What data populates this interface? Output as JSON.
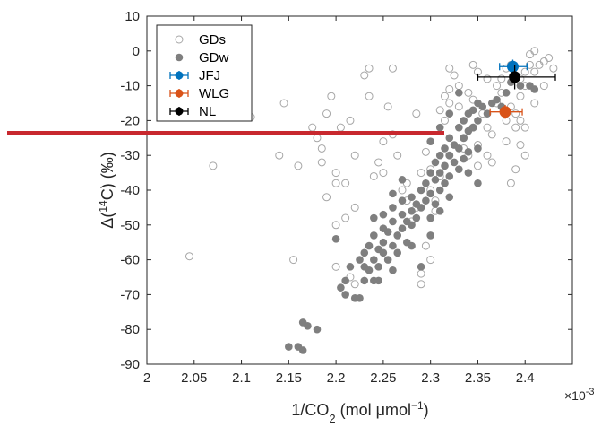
{
  "chart_data": {
    "type": "scatter",
    "title": "",
    "xlabel": "1/CO",
    "xlabel_sub": "2",
    "xlabel_units_prefix": " (mol μmol",
    "xlabel_units_sup": "−1",
    "xlabel_units_suffix": ")",
    "ylabel_prefix": "Δ(",
    "ylabel_sup": "14",
    "ylabel_suffix": "C) (‰)",
    "x_exponent_base": "×10",
    "x_exponent": "-3",
    "xlim": [
      2.0,
      2.45
    ],
    "ylim": [
      -90,
      10
    ],
    "xticks": [
      2,
      2.05,
      2.1,
      2.15,
      2.2,
      2.25,
      2.3,
      2.35,
      2.4
    ],
    "xtick_labels": [
      "2",
      "2.05",
      "2.1",
      "2.15",
      "2.2",
      "2.25",
      "2.3",
      "2.35",
      "2.4"
    ],
    "yticks": [
      10,
      0,
      -10,
      -20,
      -30,
      -40,
      -50,
      -60,
      -70,
      -80,
      -90
    ],
    "ytick_labels": [
      "10",
      "0",
      "-10",
      "-20",
      "-30",
      "-40",
      "-50",
      "-60",
      "-70",
      "-80",
      "-90"
    ],
    "grid": false,
    "legend_position": "top-left",
    "series": [
      {
        "name": "GDs",
        "marker": "open-circle",
        "color": "#a6a6a6",
        "points": [
          [
            2.045,
            -59
          ],
          [
            2.07,
            -33
          ],
          [
            2.1,
            -17
          ],
          [
            2.11,
            -19
          ],
          [
            2.14,
            -30
          ],
          [
            2.145,
            -15
          ],
          [
            2.155,
            -60
          ],
          [
            2.16,
            -33
          ],
          [
            2.175,
            -22
          ],
          [
            2.18,
            -25
          ],
          [
            2.185,
            -28
          ],
          [
            2.185,
            -32
          ],
          [
            2.19,
            -42
          ],
          [
            2.19,
            -18
          ],
          [
            2.195,
            -13
          ],
          [
            2.2,
            -35
          ],
          [
            2.2,
            -38
          ],
          [
            2.205,
            -22
          ],
          [
            2.21,
            -38
          ],
          [
            2.215,
            -20
          ],
          [
            2.23,
            -7
          ],
          [
            2.235,
            -5
          ],
          [
            2.235,
            -13
          ],
          [
            2.24,
            -36
          ],
          [
            2.245,
            -32
          ],
          [
            2.25,
            -26
          ],
          [
            2.25,
            -35
          ],
          [
            2.255,
            -16
          ],
          [
            2.26,
            -5
          ],
          [
            2.265,
            -30
          ],
          [
            2.27,
            -40
          ],
          [
            2.275,
            -43
          ],
          [
            2.28,
            -49
          ],
          [
            2.285,
            -45
          ],
          [
            2.285,
            -18
          ],
          [
            2.29,
            -64
          ],
          [
            2.29,
            -67
          ],
          [
            2.295,
            -29
          ],
          [
            2.3,
            -34
          ],
          [
            2.3,
            -40
          ],
          [
            2.305,
            -46
          ],
          [
            2.31,
            -36
          ],
          [
            2.31,
            -17
          ],
          [
            2.315,
            -13
          ],
          [
            2.315,
            -20
          ],
          [
            2.32,
            -5
          ],
          [
            2.32,
            -11
          ],
          [
            2.325,
            -7
          ],
          [
            2.33,
            -10
          ],
          [
            2.335,
            -25
          ],
          [
            2.335,
            -28
          ],
          [
            2.34,
            -30
          ],
          [
            2.345,
            -22
          ],
          [
            2.35,
            -27
          ],
          [
            2.355,
            -18
          ],
          [
            2.36,
            -22
          ],
          [
            2.36,
            -30
          ],
          [
            2.365,
            -32
          ],
          [
            2.365,
            -24
          ],
          [
            2.37,
            -15
          ],
          [
            2.375,
            -8
          ],
          [
            2.375,
            -12
          ],
          [
            2.38,
            -20
          ],
          [
            2.38,
            -26
          ],
          [
            2.385,
            -16
          ],
          [
            2.39,
            -18
          ],
          [
            2.39,
            -22
          ],
          [
            2.395,
            -20
          ],
          [
            2.395,
            -8
          ],
          [
            2.4,
            -6
          ],
          [
            2.4,
            -10
          ],
          [
            2.405,
            -4
          ],
          [
            2.405,
            -1
          ],
          [
            2.41,
            0
          ],
          [
            2.41,
            -6
          ],
          [
            2.415,
            -4
          ],
          [
            2.42,
            -10
          ],
          [
            2.385,
            -38
          ],
          [
            2.39,
            -34
          ],
          [
            2.395,
            -27
          ],
          [
            2.4,
            -30
          ],
          [
            2.38,
            -5
          ],
          [
            2.385,
            -4
          ],
          [
            2.37,
            -10
          ],
          [
            2.36,
            -8
          ],
          [
            2.35,
            -6
          ],
          [
            2.345,
            -14
          ],
          [
            2.32,
            -15
          ],
          [
            2.29,
            -35
          ],
          [
            2.275,
            -38
          ],
          [
            2.26,
            -24
          ],
          [
            2.22,
            -45
          ],
          [
            2.215,
            -65
          ],
          [
            2.21,
            -48
          ],
          [
            2.2,
            -50
          ],
          [
            2.2,
            -62
          ],
          [
            2.22,
            -67
          ],
          [
            2.22,
            -30
          ],
          [
            2.32,
            -30
          ],
          [
            2.33,
            -16
          ],
          [
            2.34,
            -12
          ],
          [
            2.345,
            -4
          ],
          [
            2.42,
            -3
          ],
          [
            2.425,
            -2
          ],
          [
            2.43,
            -5
          ],
          [
            2.395,
            -13
          ],
          [
            2.4,
            -22
          ],
          [
            2.41,
            -15
          ],
          [
            2.35,
            -33
          ],
          [
            2.295,
            -56
          ],
          [
            2.3,
            -60
          ],
          [
            2.305,
            -43
          ]
        ]
      },
      {
        "name": "GDw",
        "marker": "filled-circle",
        "color": "#7f7f7f",
        "points": [
          [
            2.15,
            -85
          ],
          [
            2.16,
            -85
          ],
          [
            2.165,
            -86
          ],
          [
            2.165,
            -78
          ],
          [
            2.17,
            -79
          ],
          [
            2.18,
            -80
          ],
          [
            2.2,
            -54
          ],
          [
            2.205,
            -68
          ],
          [
            2.21,
            -66
          ],
          [
            2.21,
            -70
          ],
          [
            2.215,
            -62
          ],
          [
            2.22,
            -71
          ],
          [
            2.225,
            -71
          ],
          [
            2.225,
            -60
          ],
          [
            2.23,
            -58
          ],
          [
            2.23,
            -62
          ],
          [
            2.235,
            -56
          ],
          [
            2.235,
            -63
          ],
          [
            2.24,
            -60
          ],
          [
            2.24,
            -53
          ],
          [
            2.24,
            -48
          ],
          [
            2.245,
            -57
          ],
          [
            2.245,
            -62
          ],
          [
            2.25,
            -55
          ],
          [
            2.25,
            -58
          ],
          [
            2.25,
            -47
          ],
          [
            2.255,
            -60
          ],
          [
            2.255,
            -52
          ],
          [
            2.26,
            -56
          ],
          [
            2.26,
            -49
          ],
          [
            2.26,
            -45
          ],
          [
            2.265,
            -58
          ],
          [
            2.265,
            -53
          ],
          [
            2.27,
            -51
          ],
          [
            2.27,
            -47
          ],
          [
            2.27,
            -43
          ],
          [
            2.275,
            -55
          ],
          [
            2.275,
            -49
          ],
          [
            2.28,
            -46
          ],
          [
            2.28,
            -42
          ],
          [
            2.28,
            -50
          ],
          [
            2.285,
            -44
          ],
          [
            2.285,
            -48
          ],
          [
            2.29,
            -40
          ],
          [
            2.29,
            -45
          ],
          [
            2.295,
            -38
          ],
          [
            2.295,
            -43
          ],
          [
            2.3,
            -35
          ],
          [
            2.3,
            -41
          ],
          [
            2.3,
            -48
          ],
          [
            2.305,
            -32
          ],
          [
            2.305,
            -37
          ],
          [
            2.305,
            -44
          ],
          [
            2.31,
            -30
          ],
          [
            2.31,
            -35
          ],
          [
            2.31,
            -40
          ],
          [
            2.315,
            -28
          ],
          [
            2.315,
            -33
          ],
          [
            2.315,
            -38
          ],
          [
            2.32,
            -25
          ],
          [
            2.32,
            -30
          ],
          [
            2.32,
            -36
          ],
          [
            2.325,
            -27
          ],
          [
            2.325,
            -32
          ],
          [
            2.33,
            -22
          ],
          [
            2.33,
            -28
          ],
          [
            2.33,
            -34
          ],
          [
            2.335,
            -20
          ],
          [
            2.335,
            -25
          ],
          [
            2.335,
            -31
          ],
          [
            2.34,
            -18
          ],
          [
            2.34,
            -23
          ],
          [
            2.34,
            -29
          ],
          [
            2.345,
            -17
          ],
          [
            2.345,
            -22
          ],
          [
            2.35,
            -15
          ],
          [
            2.35,
            -20
          ],
          [
            2.355,
            -16
          ],
          [
            2.36,
            -18
          ],
          [
            2.365,
            -15
          ],
          [
            2.37,
            -14
          ],
          [
            2.375,
            -16
          ],
          [
            2.38,
            -12
          ],
          [
            2.385,
            -9
          ],
          [
            2.39,
            -8
          ],
          [
            2.395,
            -10
          ],
          [
            2.405,
            -10
          ],
          [
            2.41,
            -11
          ],
          [
            2.29,
            -62
          ],
          [
            2.28,
            -56
          ],
          [
            2.24,
            -66
          ],
          [
            2.3,
            -26
          ],
          [
            2.31,
            -22
          ],
          [
            2.32,
            -18
          ],
          [
            2.33,
            -12
          ],
          [
            2.34,
            -35
          ],
          [
            2.35,
            -28
          ],
          [
            2.26,
            -41
          ],
          [
            2.27,
            -37
          ],
          [
            2.25,
            -51
          ],
          [
            2.23,
            -66
          ],
          [
            2.26,
            -63
          ],
          [
            2.245,
            -66
          ],
          [
            2.3,
            -53
          ],
          [
            2.31,
            -46
          ],
          [
            2.32,
            -42
          ],
          [
            2.35,
            -38
          ]
        ]
      },
      {
        "name": "JFJ",
        "marker": "filled-circle-errorbar",
        "color": "#0072bd",
        "points": [
          [
            2.387,
            -4.5
          ]
        ],
        "x_error": [
          [
            2.373,
            2.402
          ]
        ],
        "y_error": [
          [
            -7,
            -2.5
          ]
        ]
      },
      {
        "name": "WLG",
        "marker": "filled-circle-errorbar",
        "color": "#d95319",
        "points": [
          [
            2.379,
            -17.5
          ]
        ],
        "x_error": [
          [
            2.363,
            2.397
          ]
        ],
        "y_error": [
          [
            -19.5,
            -15.5
          ]
        ]
      },
      {
        "name": "NL",
        "marker": "filled-circle-errorbar",
        "color": "#000000",
        "points": [
          [
            2.389,
            -7.5
          ]
        ],
        "x_error": [
          [
            2.35,
            2.432
          ]
        ],
        "y_error": [
          [
            -11,
            -4
          ]
        ]
      }
    ]
  }
}
